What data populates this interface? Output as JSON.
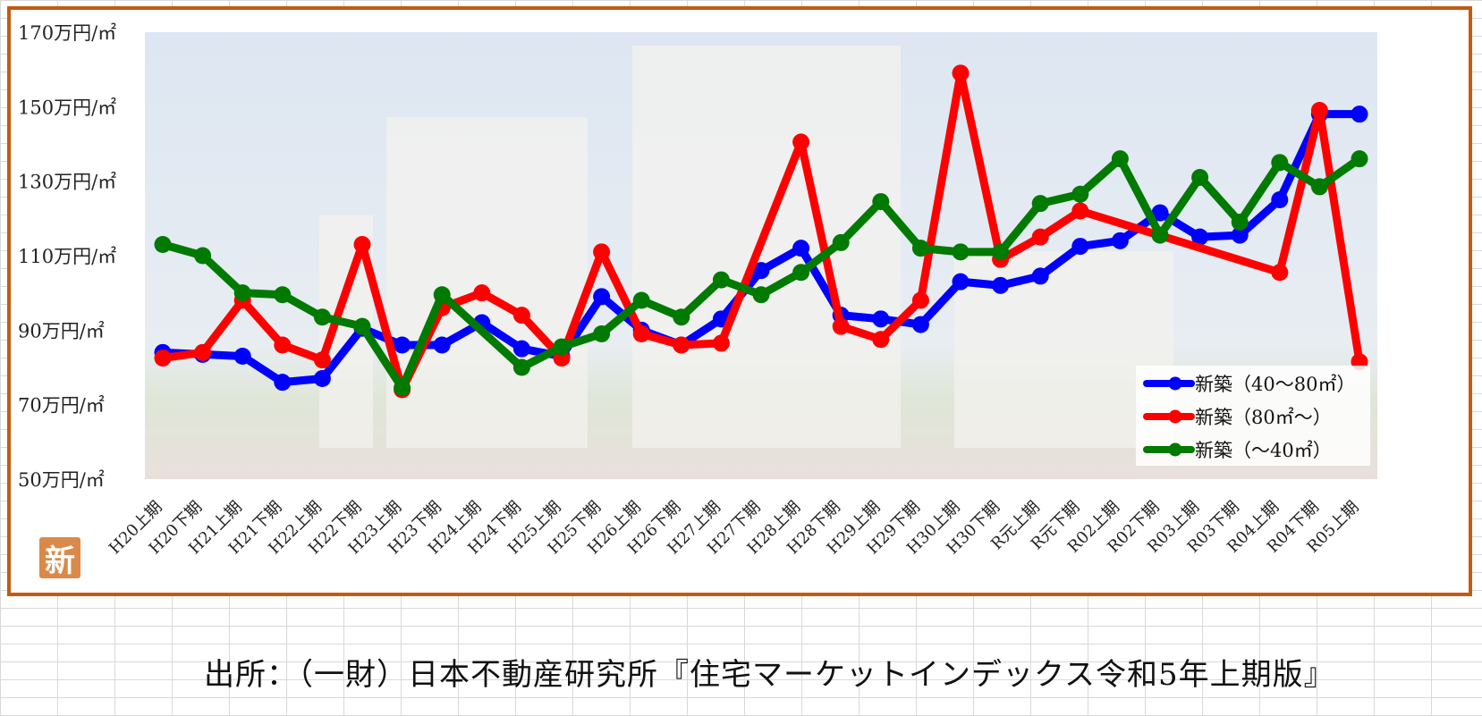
{
  "source_note": "出所：（一財）日本不動産研究所『住宅マーケットインデックス令和5年上期版』",
  "logo_text": "新",
  "colors": {
    "frame": "#c55a11",
    "series_40_80": "#0000ff",
    "series_80_plus": "#ff0000",
    "series_under_40": "#007a00"
  },
  "chart_data": {
    "type": "line",
    "title": "",
    "xlabel": "",
    "ylabel": "",
    "ylim": [
      50,
      170
    ],
    "y_ticks": [
      50,
      70,
      90,
      110,
      130,
      150,
      170
    ],
    "y_tick_labels": [
      "50万円/㎡",
      "70万円/㎡",
      "90万円/㎡",
      "110万円/㎡",
      "130万円/㎡",
      "150万円/㎡",
      "170万円/㎡"
    ],
    "legend_position": "bottom-right",
    "categories": [
      "H20上期",
      "H20下期",
      "H21上期",
      "H21下期",
      "H22上期",
      "H22下期",
      "H23上期",
      "H23下期",
      "H24上期",
      "H24下期",
      "H25上期",
      "H25下期",
      "H26上期",
      "H26下期",
      "H27上期",
      "H27下期",
      "H28上期",
      "H28下期",
      "H29上期",
      "H29下期",
      "H30上期",
      "H30下期",
      "R元上期",
      "R元下期",
      "R02上期",
      "R02下期",
      "R03上期",
      "R03下期",
      "R04上期",
      "R04下期",
      "R05上期"
    ],
    "series": [
      {
        "name": "新築（40～80㎡）",
        "color_key": "series_40_80",
        "values": [
          84,
          83.5,
          83,
          76,
          77,
          90.5,
          86,
          86,
          92,
          85,
          83,
          99,
          90,
          86,
          93,
          106,
          112,
          94,
          93,
          91.5,
          103,
          102,
          104.5,
          112.5,
          114,
          121.5,
          115,
          115.5,
          125,
          148,
          148
        ]
      },
      {
        "name": "新築（80㎡～）",
        "color_key": "series_80_plus",
        "values": [
          82.5,
          84,
          98,
          86,
          82,
          113,
          74,
          96,
          100,
          94,
          82.5,
          111,
          89,
          86,
          86.5,
          null,
          140.5,
          91,
          87.5,
          98,
          159,
          109,
          115,
          122,
          null,
          null,
          null,
          null,
          105.5,
          149,
          81.5
        ]
      },
      {
        "name": "新築（～40㎡）",
        "color_key": "series_under_40",
        "values": [
          113,
          110,
          100,
          99.5,
          93.5,
          91,
          74.5,
          99.5,
          null,
          80,
          85.5,
          89,
          98,
          93.5,
          103.5,
          99.5,
          105.5,
          113.5,
          124.5,
          112,
          111,
          111,
          124,
          126.5,
          136,
          115.5,
          131,
          119,
          135,
          128.5,
          136
        ]
      }
    ]
  }
}
